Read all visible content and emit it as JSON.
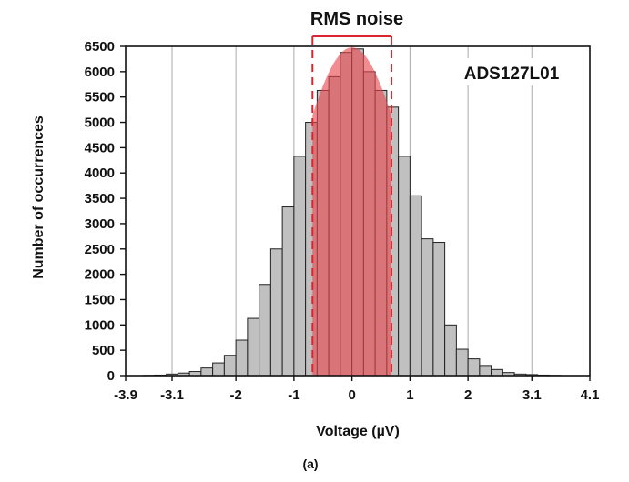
{
  "chart_data": {
    "type": "bar",
    "title": "RMS noise",
    "annotation": "ADS127L01",
    "caption": "(a)",
    "xlabel": "Voltage (µV)",
    "ylabel": "Number of occurrences",
    "xlim": [
      -3.9,
      4.1
    ],
    "ylim": [
      0,
      6500
    ],
    "xticks": [
      -3.9,
      -3.1,
      -2,
      -1,
      0,
      1,
      2,
      3.1,
      4.1
    ],
    "xtick_labels": [
      "-3.9",
      "-3.1",
      "-2",
      "-1",
      "0",
      "1",
      "2",
      "3.1",
      "4.1"
    ],
    "yticks": [
      0,
      500,
      1000,
      1500,
      2000,
      2500,
      3000,
      3500,
      4000,
      4500,
      5000,
      5500,
      6000,
      6500
    ],
    "bin_width": 0.2,
    "bins": [
      {
        "x": -3.5,
        "y": 5
      },
      {
        "x": -3.3,
        "y": 10
      },
      {
        "x": -3.1,
        "y": 30
      },
      {
        "x": -2.9,
        "y": 50
      },
      {
        "x": -2.7,
        "y": 80
      },
      {
        "x": -2.5,
        "y": 150
      },
      {
        "x": -2.3,
        "y": 250
      },
      {
        "x": -2.1,
        "y": 400
      },
      {
        "x": -1.9,
        "y": 700
      },
      {
        "x": -1.7,
        "y": 1130
      },
      {
        "x": -1.5,
        "y": 1800
      },
      {
        "x": -1.3,
        "y": 2500
      },
      {
        "x": -1.1,
        "y": 3330
      },
      {
        "x": -0.9,
        "y": 4330
      },
      {
        "x": -0.7,
        "y": 5000
      },
      {
        "x": -0.5,
        "y": 5630
      },
      {
        "x": -0.3,
        "y": 5900
      },
      {
        "x": -0.1,
        "y": 6380
      },
      {
        "x": 0.1,
        "y": 6450
      },
      {
        "x": 0.3,
        "y": 6000
      },
      {
        "x": 0.5,
        "y": 5630
      },
      {
        "x": 0.7,
        "y": 5300
      },
      {
        "x": 0.9,
        "y": 4330
      },
      {
        "x": 1.1,
        "y": 3550
      },
      {
        "x": 1.3,
        "y": 2700
      },
      {
        "x": 1.5,
        "y": 2630
      },
      {
        "x": 1.7,
        "y": 1000
      },
      {
        "x": 1.9,
        "y": 520
      },
      {
        "x": 2.1,
        "y": 330
      },
      {
        "x": 2.3,
        "y": 200
      },
      {
        "x": 2.5,
        "y": 120
      },
      {
        "x": 2.7,
        "y": 60
      },
      {
        "x": 2.9,
        "y": 30
      },
      {
        "x": 3.1,
        "y": 20
      },
      {
        "x": 3.3,
        "y": 10
      },
      {
        "x": 3.5,
        "y": 5
      }
    ],
    "rms_band": {
      "min": -0.68,
      "max": 0.68
    },
    "rms_curve_peak": 6480,
    "colors": {
      "bar_fill": "#c0c0c0",
      "bar_stroke": "#222222",
      "band_fill": "#e8464d",
      "band_opacity": 0.62,
      "band_line": "#d9262e",
      "grid": "#aaaaaa"
    }
  }
}
